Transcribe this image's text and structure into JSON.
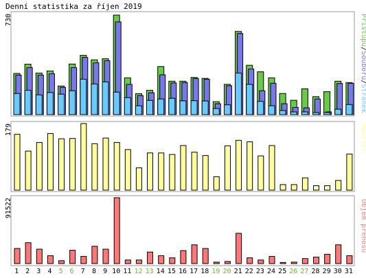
{
  "title": "Denní statistika za říjen 2019",
  "days": [
    "1",
    "2",
    "3",
    "4",
    "5",
    "6",
    "7",
    "8",
    "9",
    "10",
    "11",
    "12",
    "13",
    "14",
    "15",
    "16",
    "17",
    "18",
    "19",
    "20",
    "21",
    "22",
    "23",
    "24",
    "25",
    "26",
    "27",
    "28",
    "29",
    "30",
    "31"
  ],
  "weekend_days": [
    "5",
    "6",
    "12",
    "13",
    "19",
    "20",
    "26",
    "27"
  ],
  "colors": {
    "hits": "#66cc44",
    "files": "#7777ee",
    "pages": "#66ccff",
    "visits": "#ffff99",
    "volume": "#ff7777",
    "weekend_label": "#66bb33",
    "weekday_label": "#000000",
    "frame": "#999999",
    "bar_outline": "#000000"
  },
  "chart_data": [
    {
      "type": "bar",
      "panel": "top",
      "max_label": "730",
      "ylim": [
        0,
        730
      ],
      "legend_parts": [
        "Přístupů",
        "/",
        "Souborů",
        "/",
        "Stránek"
      ],
      "categories": [
        "1",
        "2",
        "3",
        "4",
        "5",
        "6",
        "7",
        "8",
        "9",
        "10",
        "11",
        "12",
        "13",
        "14",
        "15",
        "16",
        "17",
        "18",
        "19",
        "20",
        "21",
        "22",
        "23",
        "24",
        "25",
        "26",
        "27",
        "28",
        "29",
        "30",
        "31"
      ],
      "series": [
        {
          "name": "Přístupů",
          "values": [
            302,
            370,
            305,
            320,
            210,
            371,
            435,
            402,
            410,
            730,
            270,
            154,
            178,
            353,
            245,
            245,
            273,
            266,
            95,
            222,
            610,
            362,
            314,
            270,
            155,
            105,
            190,
            132,
            168,
            245,
            235
          ]
        },
        {
          "name": "Souborů",
          "values": [
            290,
            345,
            290,
            300,
            200,
            345,
            420,
            380,
            395,
            680,
            222,
            140,
            160,
            292,
            232,
            235,
            265,
            260,
            80,
            212,
            595,
            335,
            175,
            230,
            80,
            53,
            50,
            115,
            20,
            228,
            230
          ]
        },
        {
          "name": "Stránek",
          "values": [
            155,
            178,
            145,
            162,
            150,
            175,
            260,
            225,
            240,
            165,
            125,
            65,
            104,
            115,
            120,
            101,
            102,
            100,
            45,
            72,
            305,
            222,
            97,
            65,
            30,
            20,
            20,
            15,
            15,
            40,
            74
          ]
        }
      ]
    },
    {
      "type": "bar",
      "panel": "middle",
      "max_label": "179",
      "ylim": [
        0,
        179
      ],
      "legend": "Návštěv",
      "categories": [
        "1",
        "2",
        "3",
        "4",
        "5",
        "6",
        "7",
        "8",
        "9",
        "10",
        "11",
        "12",
        "13",
        "14",
        "15",
        "16",
        "17",
        "18",
        "19",
        "20",
        "21",
        "22",
        "23",
        "24",
        "25",
        "26",
        "27",
        "28",
        "29",
        "30",
        "31"
      ],
      "series": [
        {
          "name": "Návštěv",
          "values": [
            150,
            105,
            128,
            152,
            138,
            139,
            179,
            125,
            140,
            128,
            109,
            60,
            100,
            100,
            96,
            120,
            102,
            93,
            36,
            119,
            134,
            130,
            92,
            120,
            15,
            15,
            33,
            12,
            12,
            26,
            97
          ]
        }
      ]
    },
    {
      "type": "bar",
      "panel": "bottom",
      "max_label": "91522",
      "ylim": [
        0,
        91522
      ],
      "legend": "Objem přenosu",
      "categories": [
        "1",
        "2",
        "3",
        "4",
        "5",
        "6",
        "7",
        "8",
        "9",
        "10",
        "11",
        "12",
        "13",
        "14",
        "15",
        "16",
        "17",
        "18",
        "19",
        "20",
        "21",
        "22",
        "23",
        "24",
        "25",
        "26",
        "27",
        "28",
        "29",
        "30",
        "31"
      ],
      "series": [
        {
          "name": "Objem přenosu",
          "values": [
            21000,
            29000,
            20000,
            11000,
            4000,
            18500,
            10000,
            24000,
            20000,
            91522,
            5000,
            5000,
            16000,
            11000,
            8000,
            18000,
            26000,
            21000,
            2000,
            3000,
            42000,
            8000,
            5000,
            10000,
            1500,
            2000,
            7000,
            9000,
            13000,
            26000,
            11000
          ]
        }
      ]
    }
  ]
}
